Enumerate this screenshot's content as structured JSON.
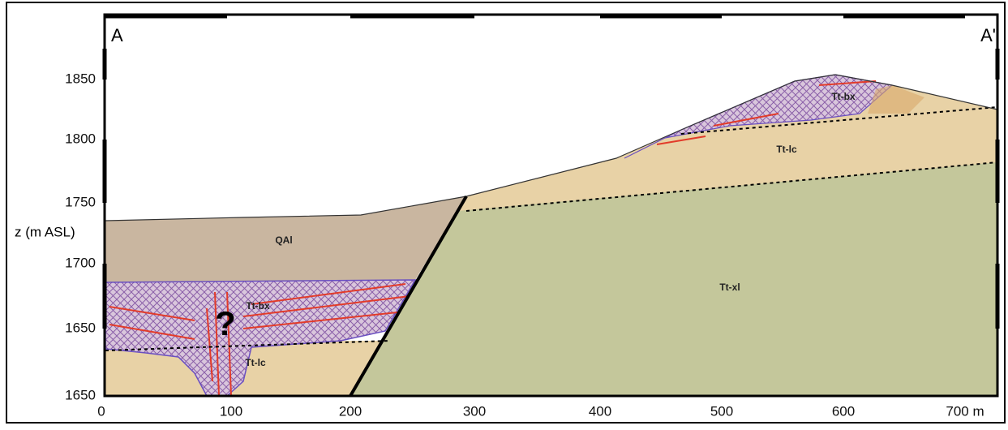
{
  "section": {
    "start_label": "A",
    "end_label": "A'"
  },
  "y_axis": {
    "title": "z (m ASL)",
    "ticks": [
      "1850",
      "1800",
      "1750",
      "1700",
      "1650",
      "1650"
    ]
  },
  "x_axis": {
    "ticks": [
      "0",
      "100",
      "200",
      "300",
      "400",
      "500",
      "600",
      "700 m"
    ]
  },
  "unit_labels": [
    "QAl",
    "Tt-bx",
    "Tt-lc",
    "Tt-xl",
    "Tt-bx",
    "Tt-lc",
    "?"
  ]
}
